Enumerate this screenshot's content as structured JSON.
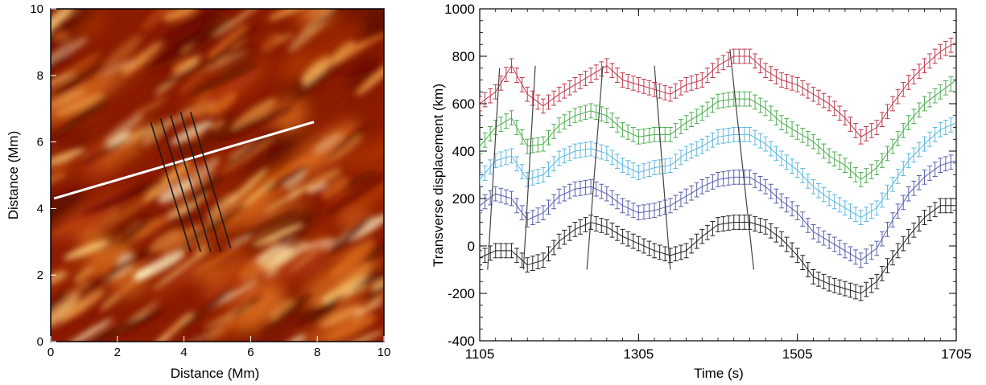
{
  "chart_data": [
    {
      "type": "heatmap",
      "xlabel": "Distance (Mm)",
      "ylabel": "Distance (Mm)",
      "xlim": [
        0,
        10
      ],
      "ylim": [
        0,
        10
      ],
      "x_ticks": [
        "0",
        "2",
        "4",
        "6",
        "8",
        "10"
      ],
      "y_ticks": [
        "0",
        "2",
        "4",
        "6",
        "8",
        "10"
      ],
      "colormap": [
        "#5a0a00",
        "#8b1c00",
        "#b83d08",
        "#d86a1c",
        "#ef9f45",
        "#fcd27d",
        "#fff3c4"
      ],
      "overlays": {
        "slit_line": {
          "color": "#ffffff",
          "from": [
            0.1,
            4.3
          ],
          "to": [
            7.9,
            6.6
          ]
        },
        "cut_lines": {
          "color": "#1a1a1a",
          "lines": [
            {
              "from": [
                3.0,
                6.6
              ],
              "to": [
                4.2,
                2.7
              ]
            },
            {
              "from": [
                3.3,
                6.7
              ],
              "to": [
                4.5,
                2.7
              ]
            },
            {
              "from": [
                3.6,
                6.8
              ],
              "to": [
                4.8,
                2.7
              ]
            },
            {
              "from": [
                3.9,
                6.9
              ],
              "to": [
                5.1,
                2.7
              ]
            },
            {
              "from": [
                4.2,
                6.9
              ],
              "to": [
                5.4,
                2.8
              ]
            }
          ]
        }
      }
    },
    {
      "type": "line",
      "xlabel": "Time (s)",
      "ylabel": "Transverse displacement (km)",
      "xlim": [
        1105,
        1705
      ],
      "ylim": [
        -400,
        1000
      ],
      "x_ticks": [
        "1105",
        "1305",
        "1505",
        "1705"
      ],
      "y_ticks": [
        "-400",
        "-200",
        "0",
        "200",
        "400",
        "600",
        "800",
        "1000"
      ],
      "series": [
        {
          "color": "#c0394b",
          "x": [
            1105,
            1125,
            1145,
            1165,
            1185,
            1205,
            1225,
            1245,
            1265,
            1285,
            1305,
            1325,
            1345,
            1365,
            1385,
            1405,
            1425,
            1445,
            1465,
            1485,
            1505,
            1525,
            1545,
            1565,
            1585,
            1605,
            1625,
            1645,
            1665,
            1685,
            1705
          ],
          "y": [
            600,
            650,
            760,
            640,
            590,
            640,
            680,
            720,
            760,
            700,
            680,
            660,
            640,
            680,
            700,
            760,
            800,
            800,
            740,
            700,
            680,
            640,
            600,
            540,
            460,
            500,
            600,
            690,
            760,
            820,
            860
          ]
        },
        {
          "color": "#4caf50",
          "x": [
            1105,
            1125,
            1145,
            1165,
            1185,
            1205,
            1225,
            1245,
            1265,
            1285,
            1305,
            1325,
            1345,
            1365,
            1385,
            1405,
            1425,
            1445,
            1465,
            1485,
            1505,
            1525,
            1545,
            1565,
            1585,
            1605,
            1625,
            1645,
            1665,
            1685,
            1705
          ],
          "y": [
            420,
            500,
            540,
            420,
            430,
            510,
            550,
            570,
            550,
            490,
            460,
            470,
            470,
            520,
            560,
            610,
            620,
            620,
            580,
            520,
            480,
            440,
            380,
            340,
            280,
            330,
            420,
            520,
            600,
            650,
            700
          ]
        },
        {
          "color": "#5bb8e0",
          "x": [
            1105,
            1125,
            1145,
            1165,
            1185,
            1205,
            1225,
            1245,
            1265,
            1285,
            1305,
            1325,
            1345,
            1365,
            1385,
            1405,
            1425,
            1445,
            1465,
            1485,
            1505,
            1525,
            1545,
            1565,
            1585,
            1605,
            1625,
            1645,
            1665,
            1685,
            1705
          ],
          "y": [
            280,
            360,
            380,
            280,
            300,
            370,
            400,
            410,
            390,
            340,
            310,
            330,
            340,
            390,
            420,
            460,
            470,
            470,
            430,
            370,
            320,
            250,
            200,
            160,
            120,
            160,
            260,
            360,
            430,
            490,
            520
          ]
        },
        {
          "color": "#5a5fae",
          "x": [
            1105,
            1125,
            1145,
            1165,
            1185,
            1205,
            1225,
            1245,
            1265,
            1285,
            1305,
            1325,
            1345,
            1365,
            1385,
            1405,
            1425,
            1445,
            1465,
            1485,
            1505,
            1525,
            1545,
            1565,
            1585,
            1605,
            1625,
            1645,
            1665,
            1685,
            1705
          ],
          "y": [
            170,
            220,
            200,
            110,
            140,
            210,
            240,
            250,
            220,
            170,
            140,
            150,
            170,
            210,
            250,
            280,
            290,
            290,
            250,
            190,
            140,
            60,
            20,
            -20,
            -60,
            -10,
            110,
            220,
            290,
            340,
            360
          ]
        },
        {
          "color": "#222222",
          "x": [
            1105,
            1125,
            1145,
            1165,
            1185,
            1205,
            1225,
            1245,
            1265,
            1285,
            1305,
            1325,
            1345,
            1365,
            1385,
            1405,
            1425,
            1445,
            1465,
            1485,
            1505,
            1525,
            1545,
            1565,
            1585,
            1605,
            1625,
            1645,
            1665,
            1685,
            1705
          ],
          "y": [
            -50,
            -20,
            -20,
            -80,
            -60,
            20,
            70,
            100,
            80,
            40,
            10,
            -20,
            -40,
            -20,
            40,
            90,
            100,
            100,
            80,
            30,
            -40,
            -130,
            -160,
            -180,
            -200,
            -150,
            -50,
            40,
            120,
            170,
            170
          ]
        }
      ],
      "error_bar_km": 30,
      "crossing_lines": {
        "color": "#444444",
        "lines": [
          {
            "x0": 1115,
            "y0": -100,
            "x1": 1130,
            "y1": 750
          },
          {
            "x0": 1160,
            "y0": -100,
            "x1": 1175,
            "y1": 760
          },
          {
            "x0": 1240,
            "y0": -100,
            "x1": 1260,
            "y1": 760
          },
          {
            "x0": 1345,
            "y0": -100,
            "x1": 1325,
            "y1": 760
          },
          {
            "x0": 1450,
            "y0": -100,
            "x1": 1420,
            "y1": 830
          }
        ]
      }
    }
  ]
}
